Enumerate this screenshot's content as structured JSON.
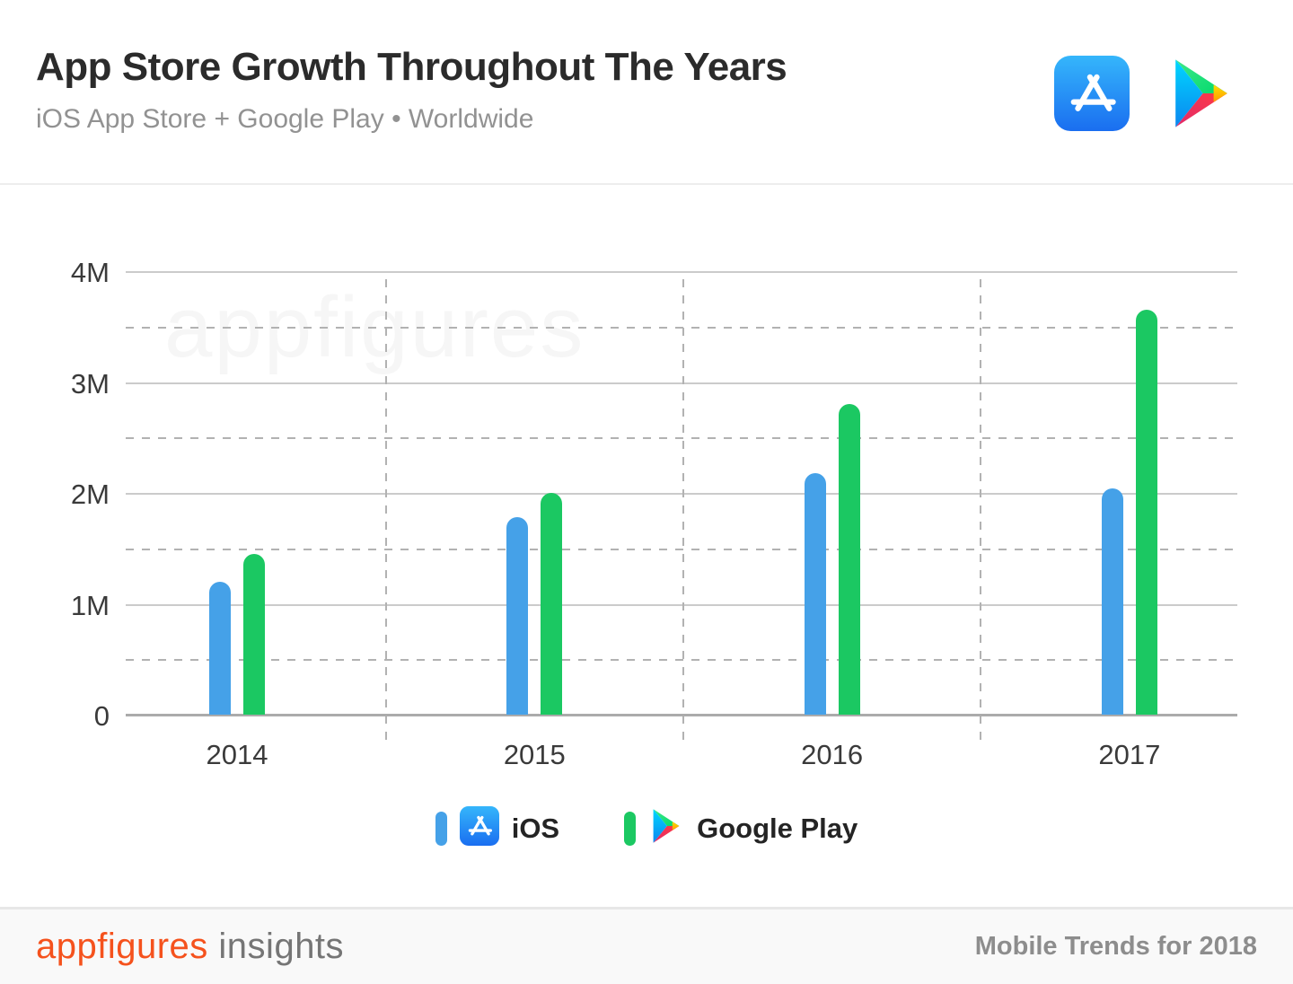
{
  "header": {
    "title": "App Store Growth Throughout The Years",
    "subtitle": "iOS App Store + Google Play • Worldwide"
  },
  "watermark": "appfigures",
  "chart_data": {
    "type": "bar",
    "categories": [
      "2014",
      "2015",
      "2016",
      "2017"
    ],
    "series": [
      {
        "name": "iOS",
        "color": "#45A1E8",
        "values": [
          1.2,
          1.78,
          2.18,
          2.04
        ]
      },
      {
        "name": "Google Play",
        "color": "#1BC862",
        "values": [
          1.45,
          2.0,
          2.8,
          3.65
        ]
      }
    ],
    "unit": "millions of apps",
    "ylim": [
      0,
      4
    ],
    "yticks": [
      {
        "value": 4,
        "label": "4M"
      },
      {
        "value": 3,
        "label": "3M"
      },
      {
        "value": 2,
        "label": "2M"
      },
      {
        "value": 1,
        "label": "1M"
      },
      {
        "value": 0,
        "label": "0"
      }
    ],
    "grid": {
      "solid_step": 1,
      "dashed_step": 1,
      "dashed_offset": 0.5,
      "vertical_separators": true
    },
    "legend_position": "bottom"
  },
  "legend": {
    "items": [
      {
        "label": "iOS",
        "icon": "app-store-icon",
        "color": "#45A1E8"
      },
      {
        "label": "Google Play",
        "icon": "google-play-icon",
        "color": "#1BC862"
      }
    ]
  },
  "footer": {
    "brand": "appfigures",
    "brand_suffix": "insights",
    "right_text": "Mobile Trends for 2018"
  },
  "colors": {
    "ios_bar": "#45A1E8",
    "google_play_bar": "#1BC862",
    "brand_orange": "#F5521D",
    "grid_solid": "#CBCBCB",
    "grid_dashed": "#B2B2B2"
  }
}
